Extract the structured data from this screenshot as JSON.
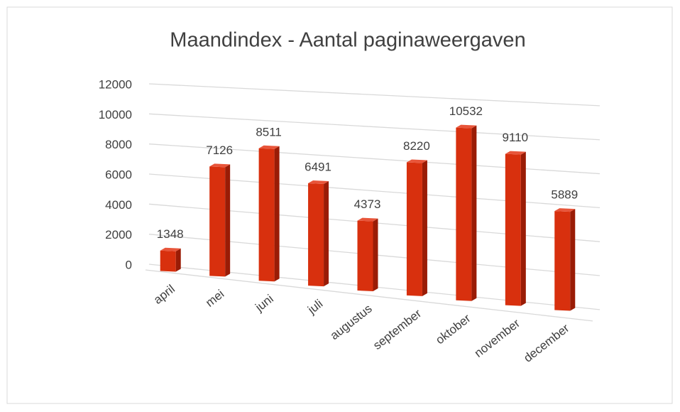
{
  "chart_data": {
    "type": "bar3d",
    "title": "Maandindex - Aantal paginaweergaven",
    "categories": [
      "april",
      "mei",
      "juni",
      "juli",
      "augustus",
      "september",
      "oktober",
      "november",
      "december"
    ],
    "values": [
      1348,
      7126,
      8511,
      6491,
      4373,
      8220,
      10532,
      9110,
      5889
    ],
    "color": "#d8300e",
    "ylim": [
      0,
      12000
    ],
    "yticks": [
      0,
      2000,
      4000,
      6000,
      8000,
      10000,
      12000
    ],
    "grid": true
  }
}
